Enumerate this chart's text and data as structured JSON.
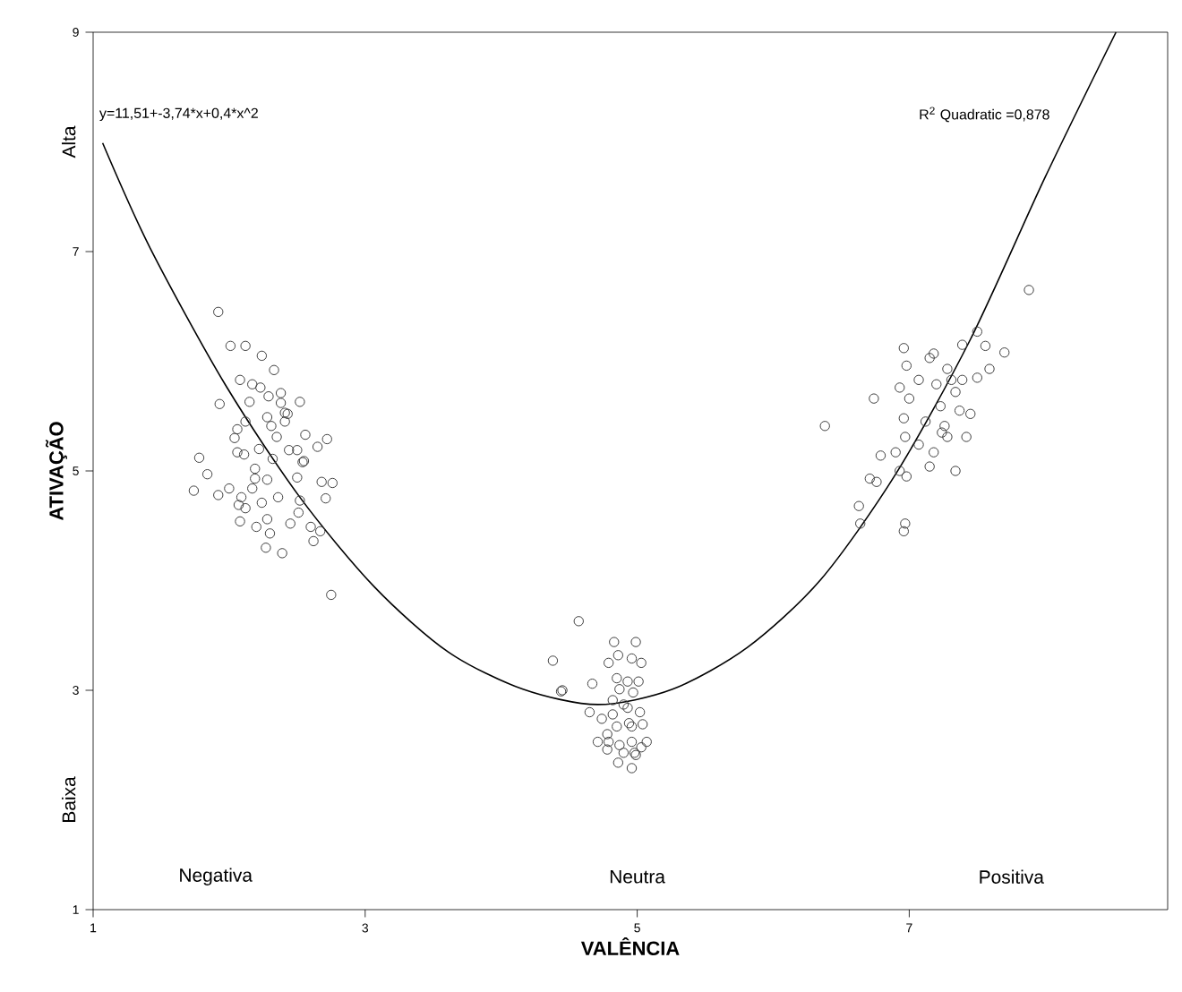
{
  "chart_data": {
    "type": "scatter",
    "xlabel": "VALÊNCIA",
    "ylabel": "ATIVAÇÃO",
    "xlim": [
      1,
      8.9
    ],
    "ylim": [
      1,
      9
    ],
    "xticks": [
      1,
      3,
      5,
      7
    ],
    "yticks": [
      1,
      3,
      5,
      7,
      9
    ],
    "grid": false,
    "marker": "circle",
    "annotations": [
      "y=11,51+-3,74*x+0,4*x^2",
      "R$^{2}$ Quadratic =0,878",
      "Negativa",
      "Neutra",
      "Positiva",
      "Alta",
      "Baixa"
    ],
    "series": [
      {
        "color": "#404040",
        "x": [
          1.92,
          2.01,
          2.12,
          2.24,
          2.33,
          1.93,
          2.08,
          2.17,
          2.23,
          2.29,
          2.38,
          2.52,
          2.38,
          2.41,
          2.28,
          2.31,
          2.43,
          2.06,
          2.15,
          2.12,
          2.06,
          2.11,
          2.22,
          2.35,
          2.44,
          2.56,
          2.65,
          2.72,
          2.54,
          2.55,
          1.78,
          1.84,
          1.74,
          1.92,
          2.0,
          2.09,
          2.17,
          2.19,
          2.28,
          2.36,
          2.52,
          2.5,
          2.68,
          2.76,
          2.71,
          2.07,
          2.12,
          2.24,
          2.28,
          2.08,
          2.2,
          2.3,
          2.51,
          2.6,
          2.67,
          2.45,
          2.62,
          2.27,
          2.39,
          2.75,
          2.04,
          2.19,
          2.32,
          2.41,
          2.5,
          4.57,
          4.38,
          4.45,
          4.44,
          4.67,
          4.83,
          4.99,
          4.79,
          4.86,
          4.96,
          5.03,
          4.85,
          4.93,
          5.01,
          4.87,
          4.97,
          4.65,
          4.74,
          4.82,
          4.93,
          5.02,
          4.85,
          4.96,
          5.04,
          4.71,
          4.79,
          4.87,
          4.96,
          5.07,
          4.78,
          4.9,
          4.98,
          4.86,
          4.96,
          5.03,
          4.94,
          4.9,
          4.78,
          4.99,
          4.82,
          7.88,
          6.38,
          6.74,
          6.63,
          6.64,
          6.71,
          6.76,
          6.79,
          6.9,
          6.93,
          6.96,
          6.98,
          7.0,
          6.96,
          6.97,
          6.93,
          6.98,
          6.97,
          6.96,
          7.07,
          7.15,
          7.18,
          7.2,
          7.23,
          7.15,
          7.26,
          7.28,
          7.31,
          7.34,
          7.37,
          7.39,
          7.45,
          7.5,
          7.39,
          7.28,
          7.42,
          7.34,
          7.59,
          7.56,
          7.7,
          7.5,
          7.12,
          7.18,
          7.24,
          7.07
        ],
        "values": [
          6.45,
          6.14,
          6.14,
          6.05,
          5.92,
          5.61,
          5.83,
          5.79,
          5.76,
          5.68,
          5.71,
          5.63,
          5.62,
          5.53,
          5.49,
          5.41,
          5.52,
          5.38,
          5.63,
          5.45,
          5.17,
          5.15,
          5.2,
          5.31,
          5.19,
          5.33,
          5.22,
          5.29,
          5.08,
          5.09,
          5.12,
          4.97,
          4.82,
          4.78,
          4.84,
          4.76,
          4.84,
          4.93,
          4.92,
          4.76,
          4.73,
          4.94,
          4.9,
          4.89,
          4.75,
          4.69,
          4.66,
          4.71,
          4.56,
          4.54,
          4.49,
          4.43,
          4.62,
          4.49,
          4.45,
          4.52,
          4.36,
          4.3,
          4.25,
          3.87,
          5.3,
          5.02,
          5.11,
          5.45,
          5.19,
          3.63,
          3.27,
          3.0,
          2.99,
          3.06,
          3.44,
          3.44,
          3.25,
          3.32,
          3.29,
          3.25,
          3.11,
          3.08,
          3.08,
          3.01,
          2.98,
          2.8,
          2.74,
          2.78,
          2.84,
          2.8,
          2.67,
          2.67,
          2.69,
          2.53,
          2.53,
          2.5,
          2.53,
          2.53,
          2.46,
          2.43,
          2.43,
          2.34,
          2.29,
          2.48,
          2.7,
          2.87,
          2.6,
          2.41,
          2.91,
          6.65,
          5.41,
          5.66,
          4.68,
          4.52,
          4.93,
          4.9,
          5.14,
          5.17,
          5.76,
          6.12,
          5.96,
          5.66,
          5.48,
          5.31,
          5.0,
          4.95,
          4.52,
          4.45,
          5.24,
          6.03,
          6.07,
          5.79,
          5.59,
          5.04,
          5.41,
          5.93,
          5.83,
          5.72,
          5.55,
          6.15,
          5.52,
          6.27,
          5.83,
          5.31,
          5.31,
          5.0,
          5.93,
          6.14,
          6.08,
          5.85,
          5.45,
          5.17,
          5.35,
          5.83
        ]
      },
      {
        "type": "line",
        "color": "#000000",
        "marker": "none",
        "line_style": "solid",
        "x": [
          1.07,
          1.42,
          1.97,
          2.52,
          3.07,
          3.61,
          4.16,
          4.71,
          5.26,
          5.81,
          6.35,
          6.9,
          7.45,
          8.0,
          8.52
        ],
        "values": [
          7.99,
          7.03,
          5.79,
          4.76,
          3.94,
          3.35,
          3.01,
          2.87,
          3.01,
          3.39,
          4.01,
          4.97,
          6.2,
          7.68,
          9.0
        ]
      }
    ]
  }
}
